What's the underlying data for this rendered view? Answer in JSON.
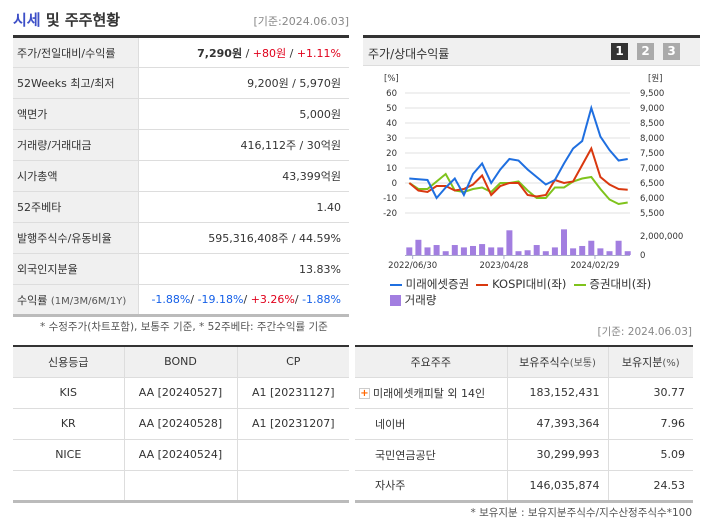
{
  "header": {
    "title_accent": "시세",
    "title_rest": " 및 주주현황",
    "base_date": "[기준:2024.06.03]"
  },
  "info": [
    {
      "label": "주가/전일대비/수익률",
      "price": "7,290원",
      "sep1": " / ",
      "change": "+80원",
      "sep2": " / ",
      "rate": "+1.11%"
    },
    {
      "label": "52Weeks 최고/최저",
      "value": "9,200원 / 5,970원"
    },
    {
      "label": "액면가",
      "value": "5,000원"
    },
    {
      "label": "거래량/거래대금",
      "value": "416,112주 / 30억원"
    },
    {
      "label": "시가총액",
      "value": "43,399억원"
    },
    {
      "label": "52주베타",
      "value": "1.40"
    },
    {
      "label": "발행주식수/유동비율",
      "value": "595,316,408주 / 44.59%"
    },
    {
      "label": "외국인지분율",
      "value": "13.83%"
    },
    {
      "label": "수익률",
      "label_sub": "(1M/3M/6M/1Y)",
      "r1": "-1.88%",
      "r2": "-19.18%",
      "r3": "+3.26%",
      "r4": "-1.88%"
    }
  ],
  "note_left": "* 수정주가(차트포함), 보통주 기준, * 52주베타: 주간수익률 기준",
  "chart_panel": {
    "title": "주가/상대수익률",
    "tabs": [
      "1",
      "2",
      "3"
    ],
    "active_tab": "1"
  },
  "chart_data": {
    "type": "line",
    "left_unit": "[%]",
    "right_unit": "[원]",
    "left_ticks": [
      "60",
      "50",
      "40",
      "30",
      "20",
      "10",
      "0",
      "-10",
      "-20"
    ],
    "right_ticks": [
      "9,500",
      "9,000",
      "8,500",
      "8,000",
      "7,500",
      "7,000",
      "6,500",
      "6,000",
      "5,500"
    ],
    "ylim": [
      -20,
      60
    ],
    "volume_ticks": [
      "2,000,000",
      "0"
    ],
    "x_tick_labels": [
      "2022/06/30",
      "2023/04/28",
      "2024/02/29"
    ],
    "series": [
      {
        "name": "미래에셋증권",
        "color": "#1f6fe0",
        "values": [
          3,
          2.5,
          2,
          -10,
          -3,
          3,
          -8,
          6,
          13,
          0,
          9,
          16,
          15,
          9,
          4,
          -1,
          2,
          13,
          23,
          28,
          50,
          31,
          22,
          15,
          16
        ]
      },
      {
        "name": "KOSPI대비(좌)",
        "color": "#d9380f",
        "values": [
          0,
          -5,
          -6,
          -2,
          -2,
          -5,
          -4,
          -1,
          5,
          -8,
          -2,
          0,
          0,
          -8,
          -9,
          -8,
          2,
          0,
          1,
          12,
          23,
          4,
          -1,
          -4,
          -4.5
        ]
      },
      {
        "name": "증권대비(좌)",
        "color": "#7fc31c",
        "values": [
          0,
          -4,
          -4,
          1,
          6,
          -5,
          -6,
          -4,
          -3,
          -6,
          0,
          0,
          1,
          -5,
          -10,
          -10,
          -3,
          -3,
          1,
          3,
          4,
          -4,
          -11,
          -14,
          -13
        ]
      }
    ],
    "volume": {
      "name": "거래량",
      "color": "#a27ee0",
      "values": [
        800000,
        1600000,
        800000,
        1050000,
        400000,
        1050000,
        800000,
        950000,
        1150000,
        800000,
        800000,
        2600000,
        400000,
        500000,
        1050000,
        400000,
        800000,
        2700000,
        700000,
        950000,
        1500000,
        700000,
        400000,
        1500000,
        400000
      ]
    }
  },
  "note_right": "[기준: 2024.06.03]",
  "credit": {
    "headers": [
      "신용등급",
      "BOND",
      "CP"
    ],
    "rows": [
      [
        "KIS",
        "AA  [20240527]",
        "A1  [20231127]"
      ],
      [
        "KR",
        "AA  [20240528]",
        "A1  [20231207]"
      ],
      [
        "NICE",
        "AA  [20240524]",
        ""
      ],
      [
        "",
        "",
        ""
      ]
    ]
  },
  "holders": {
    "headers": [
      "주요주주",
      "보유주식수",
      "(보통)",
      "보유지분",
      "(%)"
    ],
    "rows": [
      [
        "미래에셋캐피탈 외 14인",
        "183,152,431",
        "30.77"
      ],
      [
        "네이버",
        "47,393,364",
        "7.96"
      ],
      [
        "국민연금공단",
        "30,299,993",
        "5.09"
      ],
      [
        "자사주",
        "146,035,874",
        "24.53"
      ]
    ]
  },
  "note_bottom": "* 보유지분 : 보유지분주식수/지수산정주식수*100"
}
